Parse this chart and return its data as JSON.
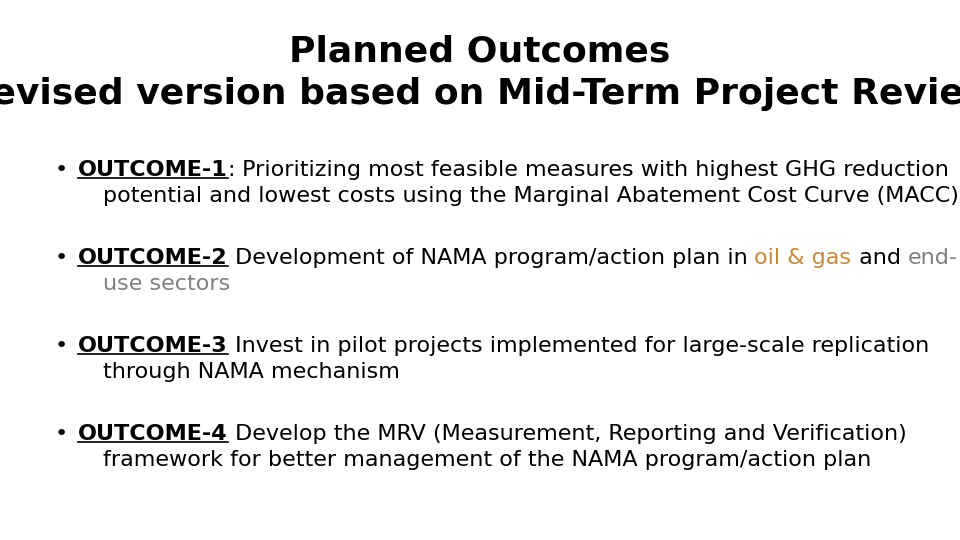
{
  "title_line1": "Planned Outcomes",
  "title_line2": "(Revised version based on Mid-Term Project Review)",
  "title_fontsize": 26,
  "title_fontweight": "bold",
  "background_color": "#ffffff",
  "text_color": "#000000",
  "highlight_color": "#c8883a",
  "strikethrough_color": "#808080",
  "body_fontsize": 16,
  "outcome1_label": "OUTCOME-1",
  "outcome1_colon": ":",
  "outcome1_rest_line1": " Prioritizing most feasible measures with highest GHG reduction",
  "outcome1_rest_line2": "potential and lowest costs using the Marginal Abatement Cost Curve (MACC)",
  "outcome2_label": "OUTCOME-2",
  "outcome2_before": " Development of NAMA program/action plan in ",
  "outcome2_highlight": "oil & gas",
  "outcome2_middle": " and ",
  "outcome2_strike1": "end-",
  "outcome2_strike2_line2": "use sectors",
  "outcome3_label": "OUTCOME-3",
  "outcome3_rest_line1": " Invest in pilot projects implemented for large-scale replication",
  "outcome3_rest_line2": "through NAMA mechanism",
  "outcome4_label": "OUTCOME-4",
  "outcome4_rest_line1": " Develop the MRV (Measurement, Reporting and Verification)",
  "outcome4_rest_line2": "framework for better management of the NAMA program/action plan"
}
